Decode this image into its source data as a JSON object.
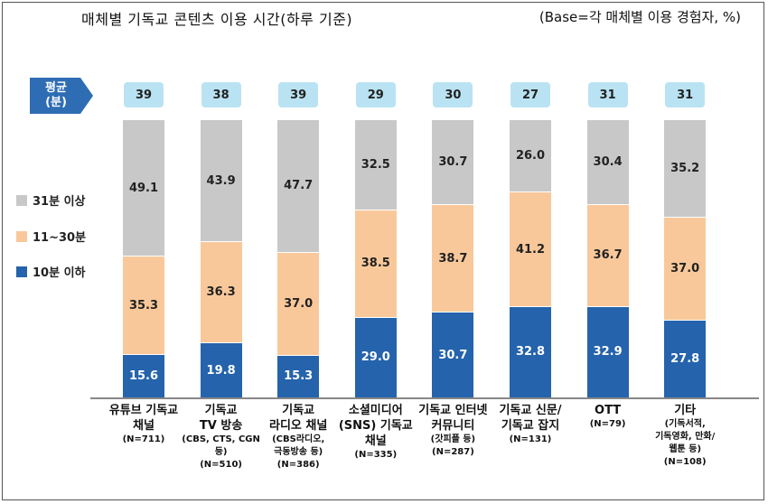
{
  "header": {
    "title": "매체별 기독교 콘텐츠 이용 시간(하루 기준)",
    "base_note": "(Base=각 매체별 이용 경험자, %)"
  },
  "average_label": "평균\n(분)",
  "colors": {
    "gray": "#c8c8c8",
    "orange": "#f9c89a",
    "blue": "#2563ac",
    "avg": "#b9e3f2"
  },
  "chart_data": {
    "type": "bar",
    "stacked": true,
    "percent_stacked": true,
    "categories": [
      {
        "label": "유튜브 기독교\n채널",
        "sub": "(N=711)",
        "average": "39"
      },
      {
        "label": "기독교\nTV 방송",
        "sub": "(CBS, CTS, CGN 등)\n(N=510)",
        "average": "38"
      },
      {
        "label": "기독교\n라디오 채널",
        "sub": "(CBS라디오,\n극동방송 등)\n(N=386)",
        "average": "39"
      },
      {
        "label": "소셜미디어\n(SNS) 기독교\n채널",
        "sub": "(N=335)",
        "average": "29"
      },
      {
        "label": "기독교 인터넷\n커뮤니티",
        "sub": "(갓피플 등)\n(N=287)",
        "average": "30"
      },
      {
        "label": "기독교 신문/\n기독교 잡지",
        "sub": "(N=131)",
        "average": "27"
      },
      {
        "label": "OTT",
        "sub": "(N=79)",
        "average": "31"
      },
      {
        "label": "기타",
        "sub": "(기독서적,\n기독영화, 만화/\n웹툰 등)\n(N=108)",
        "average": "31"
      }
    ],
    "series": [
      {
        "name": "10분 이하",
        "color": "blue",
        "values": [
          15.6,
          19.8,
          15.3,
          29.0,
          30.7,
          32.8,
          32.9,
          27.8
        ]
      },
      {
        "name": "11~30분",
        "color": "orange",
        "values": [
          35.3,
          36.3,
          37.0,
          38.5,
          38.7,
          41.2,
          36.7,
          37.0
        ]
      },
      {
        "name": "31분 이상",
        "color": "gray",
        "values": [
          49.1,
          43.9,
          47.7,
          32.5,
          30.7,
          26.0,
          30.4,
          35.2
        ]
      }
    ],
    "legend": [
      {
        "name": "31분 이상",
        "color": "gray"
      },
      {
        "name": "11~30분",
        "color": "orange"
      },
      {
        "name": "10분 이하",
        "color": "blue"
      }
    ],
    "ylim": [
      0,
      100
    ]
  }
}
